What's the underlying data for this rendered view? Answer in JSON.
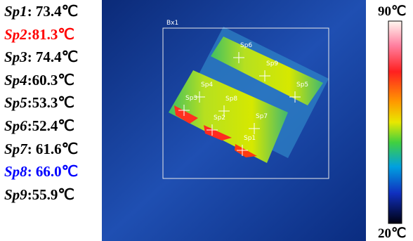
{
  "readings": [
    {
      "name": "Sp1",
      "reading": ": 73.4℃",
      "color": "#000000"
    },
    {
      "name": "Sp2",
      "reading": ":81.3℃",
      "color": "#ff0000"
    },
    {
      "name": "Sp3",
      "reading": ": 74.4℃",
      "color": "#000000"
    },
    {
      "name": "Sp4",
      "reading": ":60.3℃",
      "color": "#000000"
    },
    {
      "name": "Sp5",
      "reading": ":53.3℃",
      "color": "#000000"
    },
    {
      "name": "Sp6",
      "reading": ":52.4℃",
      "color": "#000000"
    },
    {
      "name": "Sp7",
      "reading": ": 61.6℃",
      "color": "#000000"
    },
    {
      "name": "Sp8",
      "reading": ": 66.0℃",
      "color": "#0000ff"
    },
    {
      "name": "Sp9",
      "reading": ":55.9℃",
      "color": "#000000"
    }
  ],
  "image": {
    "box_label": "Bx1",
    "markers": [
      "Sp6",
      "Sp9",
      "Sp5",
      "Sp4",
      "Sp3",
      "Sp8",
      "Sp2",
      "Sp7",
      "Sp1"
    ]
  },
  "colorbar": {
    "max_label": "90℃",
    "min_label": "20℃"
  }
}
